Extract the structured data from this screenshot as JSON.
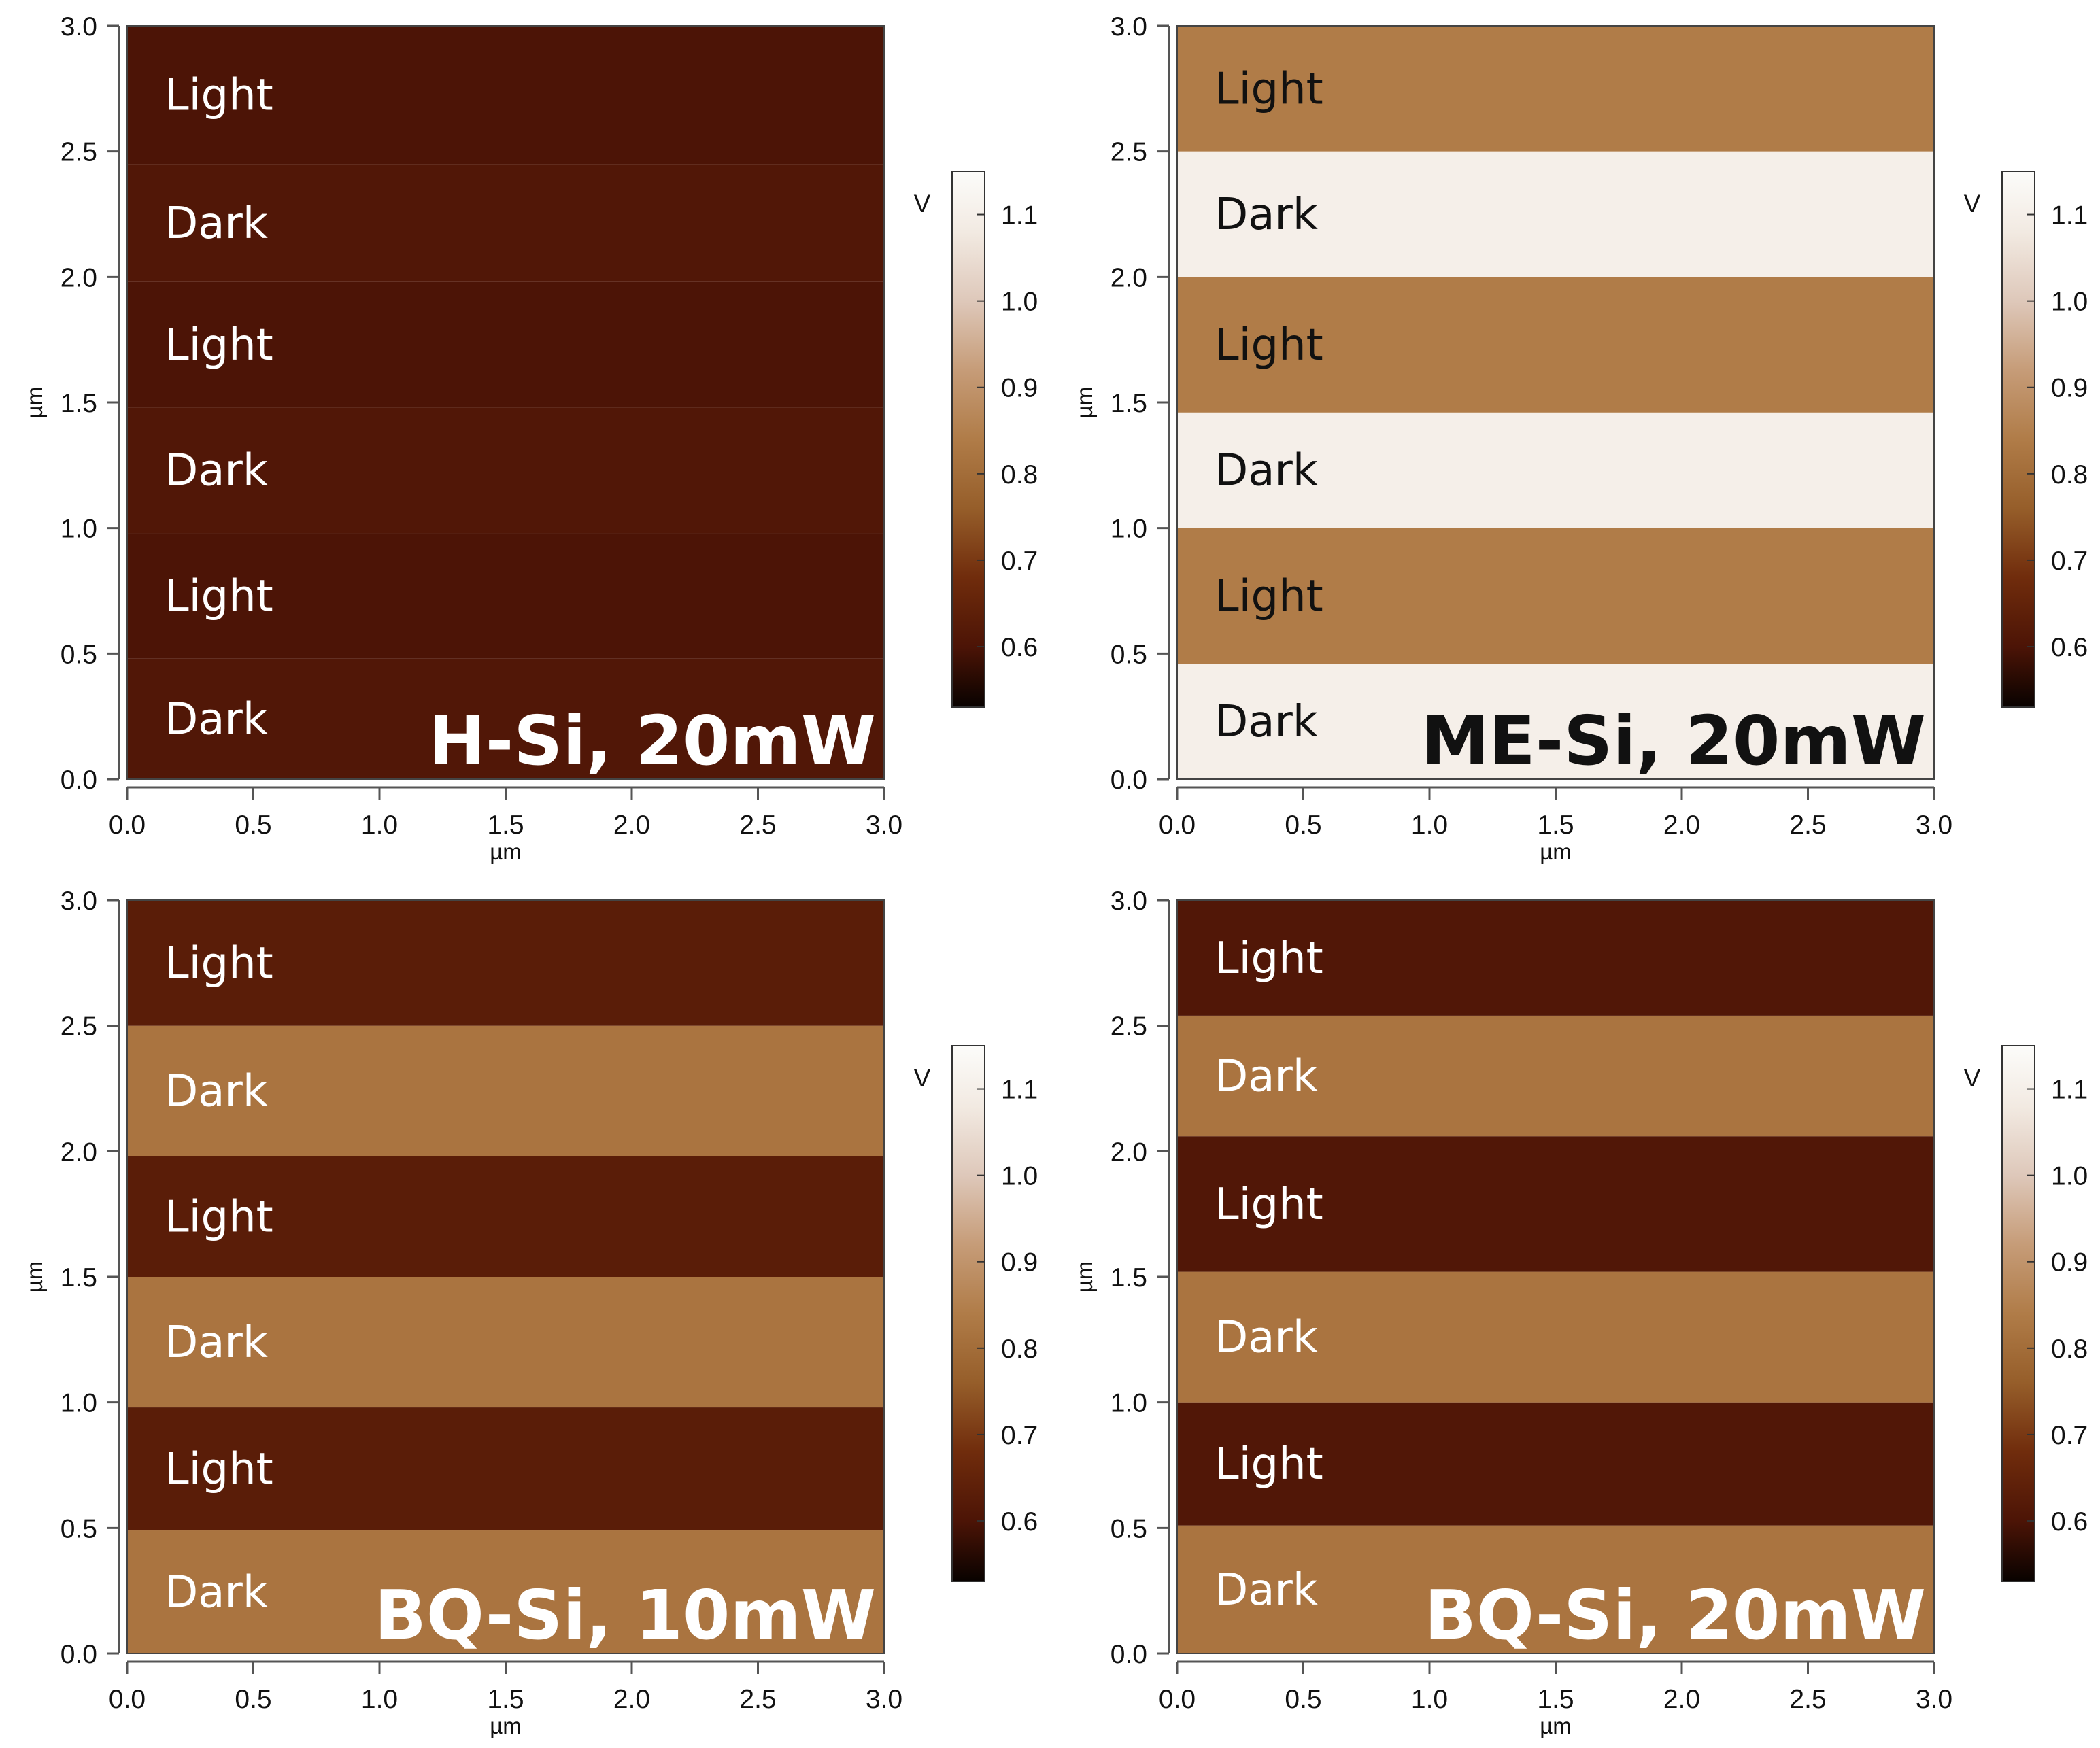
{
  "chart_data": [
    {
      "type": "heatmap",
      "title": "H-Si, 20mW",
      "xlabel": "µm",
      "ylabel": "µm",
      "xlim": [
        0.0,
        3.0
      ],
      "ylim": [
        0.0,
        3.0
      ],
      "x_ticks": [
        "0.0",
        "0.5",
        "1.0",
        "1.5",
        "2.0",
        "2.5",
        "3.0"
      ],
      "y_ticks": [
        "0.0",
        "0.5",
        "1.0",
        "1.5",
        "2.0",
        "2.5",
        "3.0"
      ],
      "colorbar": {
        "unit": "V",
        "range": [
          0.53,
          1.15
        ],
        "ticks": [
          "0.6",
          "0.7",
          "0.8",
          "0.9",
          "1.0",
          "1.1"
        ]
      },
      "bands": [
        {
          "y_start": 0.0,
          "y_end": 0.48,
          "label": "Dark",
          "value": 0.61
        },
        {
          "y_start": 0.48,
          "y_end": 0.98,
          "label": "Light",
          "value": 0.6
        },
        {
          "y_start": 0.98,
          "y_end": 1.48,
          "label": "Dark",
          "value": 0.61
        },
        {
          "y_start": 1.48,
          "y_end": 1.98,
          "label": "Light",
          "value": 0.6
        },
        {
          "y_start": 1.98,
          "y_end": 2.45,
          "label": "Dark",
          "value": 0.61
        },
        {
          "y_start": 2.45,
          "y_end": 3.0,
          "label": "Light",
          "value": 0.6
        }
      ],
      "band_label_color": "#ffffff",
      "title_color": "#ffffff"
    },
    {
      "type": "heatmap",
      "title": "ME-Si, 20mW",
      "xlabel": "µm",
      "ylabel": "µm",
      "xlim": [
        0.0,
        3.0
      ],
      "ylim": [
        0.0,
        3.0
      ],
      "x_ticks": [
        "0.0",
        "0.5",
        "1.0",
        "1.5",
        "2.0",
        "2.5",
        "3.0"
      ],
      "y_ticks": [
        "0.0",
        "0.5",
        "1.0",
        "1.5",
        "2.0",
        "2.5",
        "3.0"
      ],
      "colorbar": {
        "unit": "V",
        "range": [
          0.53,
          1.15
        ],
        "ticks": [
          "0.6",
          "0.7",
          "0.8",
          "0.9",
          "1.0",
          "1.1"
        ]
      },
      "bands": [
        {
          "y_start": 0.0,
          "y_end": 0.46,
          "label": "Dark",
          "value": 1.1
        },
        {
          "y_start": 0.46,
          "y_end": 1.0,
          "label": "Light",
          "value": 0.84
        },
        {
          "y_start": 1.0,
          "y_end": 1.46,
          "label": "Dark",
          "value": 1.1
        },
        {
          "y_start": 1.46,
          "y_end": 2.0,
          "label": "Light",
          "value": 0.84
        },
        {
          "y_start": 2.0,
          "y_end": 2.5,
          "label": "Dark",
          "value": 1.1
        },
        {
          "y_start": 2.5,
          "y_end": 3.0,
          "label": "Light",
          "value": 0.84
        }
      ],
      "band_label_color": "#111111",
      "title_color": "#111111"
    },
    {
      "type": "heatmap",
      "title": "BQ-Si, 10mW",
      "xlabel": "µm",
      "ylabel": "µm",
      "xlim": [
        0.0,
        3.0
      ],
      "ylim": [
        0.0,
        3.0
      ],
      "x_ticks": [
        "0.0",
        "0.5",
        "1.0",
        "1.5",
        "2.0",
        "2.5",
        "3.0"
      ],
      "y_ticks": [
        "0.0",
        "0.5",
        "1.0",
        "1.5",
        "2.0",
        "2.5",
        "3.0"
      ],
      "colorbar": {
        "unit": "V",
        "range": [
          0.53,
          1.15
        ],
        "ticks": [
          "0.6",
          "0.7",
          "0.8",
          "0.9",
          "1.0",
          "1.1"
        ]
      },
      "bands": [
        {
          "y_start": 0.0,
          "y_end": 0.49,
          "label": "Dark",
          "value": 0.82
        },
        {
          "y_start": 0.49,
          "y_end": 0.98,
          "label": "Light",
          "value": 0.63
        },
        {
          "y_start": 0.98,
          "y_end": 1.5,
          "label": "Dark",
          "value": 0.82
        },
        {
          "y_start": 1.5,
          "y_end": 1.98,
          "label": "Light",
          "value": 0.63
        },
        {
          "y_start": 1.98,
          "y_end": 2.5,
          "label": "Dark",
          "value": 0.82
        },
        {
          "y_start": 2.5,
          "y_end": 3.0,
          "label": "Light",
          "value": 0.63
        }
      ],
      "band_label_color": "#ffffff",
      "title_color": "#ffffff"
    },
    {
      "type": "heatmap",
      "title": "BQ-Si, 20mW",
      "xlabel": "µm",
      "ylabel": "µm",
      "xlim": [
        0.0,
        3.0
      ],
      "ylim": [
        0.0,
        3.0
      ],
      "x_ticks": [
        "0.0",
        "0.5",
        "1.0",
        "1.5",
        "2.0",
        "2.5",
        "3.0"
      ],
      "y_ticks": [
        "0.0",
        "0.5",
        "1.0",
        "1.5",
        "2.0",
        "2.5",
        "3.0"
      ],
      "colorbar": {
        "unit": "V",
        "range": [
          0.53,
          1.15
        ],
        "ticks": [
          "0.6",
          "0.7",
          "0.8",
          "0.9",
          "1.0",
          "1.1"
        ]
      },
      "bands": [
        {
          "y_start": 0.0,
          "y_end": 0.51,
          "label": "Dark",
          "value": 0.82
        },
        {
          "y_start": 0.51,
          "y_end": 1.0,
          "label": "Light",
          "value": 0.61
        },
        {
          "y_start": 1.0,
          "y_end": 1.52,
          "label": "Dark",
          "value": 0.82
        },
        {
          "y_start": 1.52,
          "y_end": 2.06,
          "label": "Light",
          "value": 0.61
        },
        {
          "y_start": 2.06,
          "y_end": 2.54,
          "label": "Dark",
          "value": 0.82
        },
        {
          "y_start": 2.54,
          "y_end": 3.0,
          "label": "Light",
          "value": 0.61
        }
      ],
      "band_label_color": "#ffffff",
      "title_color": "#ffffff"
    }
  ]
}
